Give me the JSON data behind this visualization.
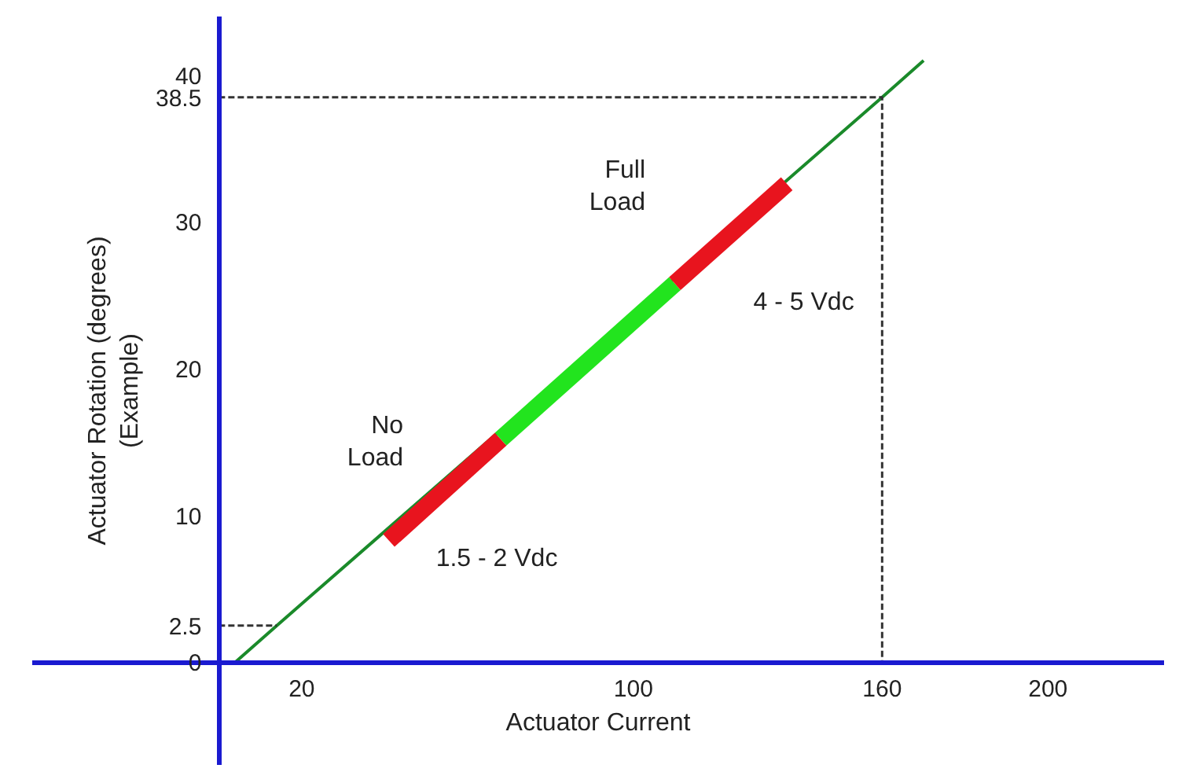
{
  "chart_data": {
    "type": "line",
    "xlabel": "Actuator Current",
    "ylabel": "Actuator Rotation (degrees)\n(Example)",
    "xlim": [
      -45,
      228
    ],
    "ylim": [
      -7,
      44
    ],
    "xticks": [
      20,
      100,
      160,
      200
    ],
    "yticks": [
      0,
      2.5,
      10,
      20,
      30,
      38.5,
      40
    ],
    "grid": false,
    "marker": "none",
    "line_style": "solid",
    "series": [
      {
        "color": "#1a8a2a",
        "x": [
          4,
          14,
          160,
          170
        ],
        "values": [
          0,
          2.5,
          38.5,
          41
        ]
      },
      {
        "color": "#333333",
        "line_style": "dotted",
        "x": [
          0,
          160,
          160
        ],
        "values": [
          38.5,
          38.5,
          0
        ]
      },
      {
        "color": "#333333",
        "line_style": "dotted",
        "x": [
          0,
          14
        ],
        "values": [
          2.5,
          2.5
        ]
      },
      {
        "color": "#e8141e",
        "x": [
          41,
          68
        ],
        "values": [
          8.3,
          15.2
        ]
      },
      {
        "color": "#22e41e",
        "x": [
          68,
          110
        ],
        "values": [
          15.2,
          25.8
        ]
      },
      {
        "color": "#e8141e",
        "x": [
          110,
          137
        ],
        "values": [
          25.8,
          32.6
        ]
      }
    ],
    "annotations": [
      "No\nLoad",
      "1.5 - 2 Vdc",
      "Full\nLoad",
      "4 - 5 Vdc"
    ]
  }
}
